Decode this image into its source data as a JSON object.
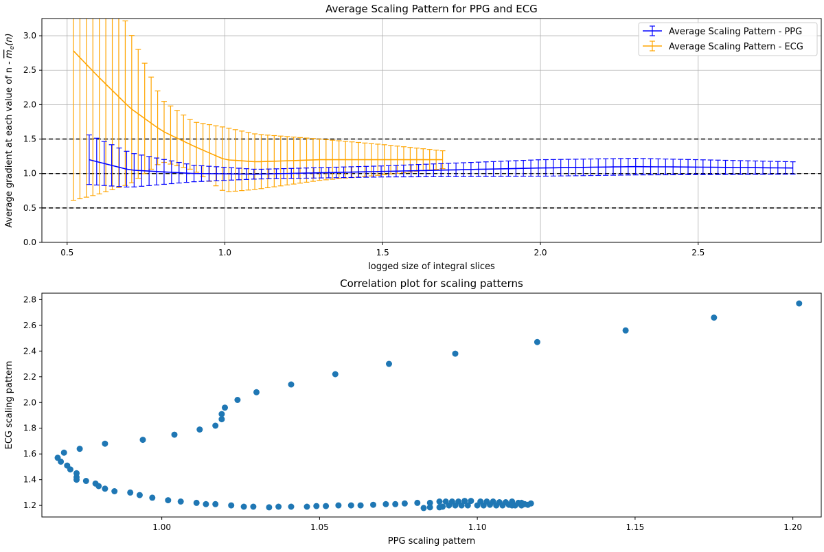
{
  "chart_data": [
    {
      "type": "line",
      "title": "Average Scaling Pattern for PPG and ECG",
      "xlabel": "logged size of integral slices",
      "ylabel_prefix": "Average gradient at each value of n - ",
      "ylabel_symbol": "m",
      "ylabel_subscript": "e",
      "ylabel_suffix": "(n)",
      "xlim": [
        0.42,
        2.89
      ],
      "ylim": [
        0,
        3.25
      ],
      "xticks": [
        0.5,
        1.0,
        1.5,
        2.0,
        2.5
      ],
      "xtick_labels": [
        "0.5",
        "1.0",
        "1.5",
        "2.0",
        "2.5"
      ],
      "yticks": [
        0,
        0.5,
        1.0,
        1.5,
        2.0,
        2.5,
        3.0
      ],
      "ytick_labels": [
        "0.0",
        "0.5",
        "1.0",
        "1.5",
        "2.0",
        "2.5",
        "3.0"
      ],
      "grid": true,
      "legend_position": "top-right",
      "reference_lines": [
        0.5,
        1.0,
        1.5
      ],
      "series": [
        {
          "name": "Average Scaling Pattern - PPG",
          "color": "#0000ff",
          "x_range": [
            0.57,
            2.8
          ],
          "anchors": [
            [
              0.57,
              1.2,
              0.36
            ],
            [
              0.7,
              1.05,
              0.25
            ],
            [
              0.9,
              1.0,
              0.12
            ],
            [
              1.1,
              0.99,
              0.07
            ],
            [
              1.5,
              1.03,
              0.08
            ],
            [
              2.0,
              1.08,
              0.12
            ],
            [
              2.3,
              1.1,
              0.12
            ],
            [
              2.8,
              1.08,
              0.09
            ]
          ]
        },
        {
          "name": "Average Scaling Pattern - ECG",
          "color": "#ffa500",
          "x_range": [
            0.52,
            1.69
          ],
          "anchors": [
            [
              0.52,
              2.78,
              2.17
            ],
            [
              0.6,
              2.4,
              1.7
            ],
            [
              0.7,
              1.95,
              1.1
            ],
            [
              0.8,
              1.62,
              0.45
            ],
            [
              0.9,
              1.4,
              0.35
            ],
            [
              1.0,
              1.2,
              0.47
            ],
            [
              1.1,
              1.17,
              0.4
            ],
            [
              1.3,
              1.2,
              0.3
            ],
            [
              1.5,
              1.2,
              0.22
            ],
            [
              1.69,
              1.2,
              0.13
            ]
          ]
        }
      ]
    },
    {
      "type": "scatter",
      "title": "Correlation plot for scaling patterns",
      "xlabel": "PPG scaling pattern",
      "ylabel": "ECG scaling pattern",
      "xlim": [
        0.962,
        1.209
      ],
      "ylim": [
        1.11,
        2.85
      ],
      "xticks": [
        1.0,
        1.05,
        1.1,
        1.15,
        1.2
      ],
      "xtick_labels": [
        "1.00",
        "1.05",
        "1.10",
        "1.15",
        "1.20"
      ],
      "yticks": [
        1.2,
        1.4,
        1.6,
        1.8,
        2.0,
        2.2,
        2.4,
        2.6,
        2.8
      ],
      "ytick_labels": [
        "1.2",
        "1.4",
        "1.6",
        "1.8",
        "2.0",
        "2.2",
        "2.4",
        "2.6",
        "2.8"
      ],
      "grid": false,
      "color": "#1f77b4",
      "points": [
        [
          1.202,
          2.77
        ],
        [
          1.175,
          2.66
        ],
        [
          1.147,
          2.56
        ],
        [
          1.119,
          2.47
        ],
        [
          1.093,
          2.38
        ],
        [
          1.072,
          2.3
        ],
        [
          1.055,
          2.22
        ],
        [
          1.041,
          2.14
        ],
        [
          1.03,
          2.08
        ],
        [
          1.024,
          2.02
        ],
        [
          1.02,
          1.96
        ],
        [
          1.019,
          1.91
        ],
        [
          1.019,
          1.87
        ],
        [
          1.017,
          1.82
        ],
        [
          1.012,
          1.79
        ],
        [
          1.004,
          1.75
        ],
        [
          0.994,
          1.71
        ],
        [
          0.982,
          1.68
        ],
        [
          0.974,
          1.64
        ],
        [
          0.969,
          1.61
        ],
        [
          0.967,
          1.57
        ],
        [
          0.968,
          1.54
        ],
        [
          0.97,
          1.51
        ],
        [
          0.971,
          1.48
        ],
        [
          0.973,
          1.45
        ],
        [
          0.973,
          1.42
        ],
        [
          0.973,
          1.4
        ],
        [
          0.976,
          1.39
        ],
        [
          0.979,
          1.37
        ],
        [
          0.98,
          1.35
        ],
        [
          0.982,
          1.33
        ],
        [
          0.985,
          1.31
        ],
        [
          0.99,
          1.3
        ],
        [
          0.993,
          1.28
        ],
        [
          0.997,
          1.26
        ],
        [
          1.002,
          1.24
        ],
        [
          1.006,
          1.23
        ],
        [
          1.011,
          1.22
        ],
        [
          1.014,
          1.21
        ],
        [
          1.017,
          1.21
        ],
        [
          1.022,
          1.2
        ],
        [
          1.026,
          1.19
        ],
        [
          1.029,
          1.19
        ],
        [
          1.034,
          1.185
        ],
        [
          1.037,
          1.19
        ],
        [
          1.041,
          1.19
        ],
        [
          1.046,
          1.19
        ],
        [
          1.049,
          1.195
        ],
        [
          1.052,
          1.195
        ],
        [
          1.056,
          1.2
        ],
        [
          1.06,
          1.2
        ],
        [
          1.063,
          1.2
        ],
        [
          1.067,
          1.205
        ],
        [
          1.071,
          1.21
        ],
        [
          1.074,
          1.21
        ],
        [
          1.077,
          1.215
        ],
        [
          1.081,
          1.22
        ],
        [
          1.083,
          1.18
        ],
        [
          1.085,
          1.185
        ],
        [
          1.085,
          1.22
        ],
        [
          1.088,
          1.185
        ],
        [
          1.088,
          1.23
        ],
        [
          1.089,
          1.19
        ],
        [
          1.09,
          1.23
        ],
        [
          1.091,
          1.2
        ],
        [
          1.092,
          1.23
        ],
        [
          1.093,
          1.2
        ],
        [
          1.094,
          1.23
        ],
        [
          1.095,
          1.2
        ],
        [
          1.096,
          1.235
        ],
        [
          1.097,
          1.2
        ],
        [
          1.098,
          1.235
        ],
        [
          1.1,
          1.2
        ],
        [
          1.101,
          1.23
        ],
        [
          1.102,
          1.2
        ],
        [
          1.103,
          1.23
        ],
        [
          1.104,
          1.205
        ],
        [
          1.105,
          1.23
        ],
        [
          1.106,
          1.2
        ],
        [
          1.107,
          1.225
        ],
        [
          1.108,
          1.2
        ],
        [
          1.109,
          1.225
        ],
        [
          1.11,
          1.205
        ],
        [
          1.111,
          1.23
        ],
        [
          1.112,
          1.2
        ],
        [
          1.113,
          1.22
        ],
        [
          1.114,
          1.2
        ],
        [
          1.115,
          1.21
        ],
        [
          1.116,
          1.205
        ],
        [
          1.117,
          1.215
        ],
        [
          1.111,
          1.2
        ],
        [
          1.114,
          1.22
        ]
      ]
    }
  ],
  "legend": {
    "ppg": "Average Scaling Pattern - PPG",
    "ecg": "Average Scaling Pattern - ECG"
  }
}
